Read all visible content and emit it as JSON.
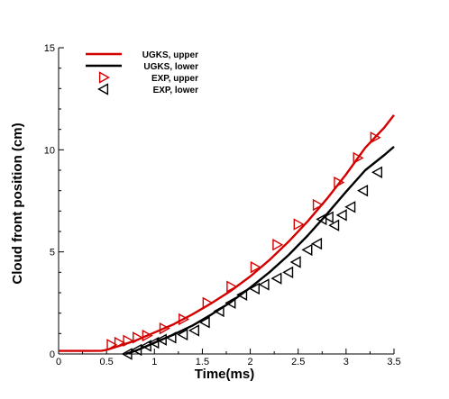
{
  "chart_data": {
    "type": "line",
    "title": "",
    "xlabel": "Time(ms)",
    "ylabel": "Cloud front position (cm)",
    "xlim": [
      0,
      3.5
    ],
    "ylim": [
      0,
      15
    ],
    "xticks": [
      0,
      0.5,
      1,
      1.5,
      2,
      2.5,
      3,
      3.5
    ],
    "xtick_labels": [
      "0",
      "0.5",
      "1",
      "1.5",
      "2",
      "2.5",
      "3",
      "3.5"
    ],
    "yticks": [
      0,
      5,
      10,
      15
    ],
    "ytick_labels": [
      "0",
      "5",
      "10",
      "15"
    ],
    "grid": false,
    "legend_position": "top-left",
    "colors": {
      "upper": "#d40000",
      "lower": "#000000"
    },
    "series": [
      {
        "name": "UGKS, upper",
        "kind": "line",
        "color": "#d40000",
        "x": [
          0,
          0.3,
          0.45,
          0.5,
          0.6,
          0.7,
          0.8,
          0.9,
          1.0,
          1.2,
          1.4,
          1.6,
          1.8,
          2.0,
          2.2,
          2.4,
          2.6,
          2.8,
          3.0,
          3.2,
          3.4,
          3.5
        ],
        "y": [
          0.15,
          0.15,
          0.16,
          0.2,
          0.35,
          0.5,
          0.65,
          0.85,
          1.05,
          1.45,
          1.95,
          2.5,
          3.1,
          3.8,
          4.6,
          5.5,
          6.5,
          7.6,
          8.8,
          10.1,
          11.1,
          11.7
        ]
      },
      {
        "name": "UGKS, lower",
        "kind": "line",
        "color": "#000000",
        "x": [
          0.7,
          0.8,
          0.9,
          1.0,
          1.2,
          1.4,
          1.6,
          1.8,
          2.0,
          2.2,
          2.4,
          2.6,
          2.8,
          3.0,
          3.2,
          3.4,
          3.5
        ],
        "y": [
          0.0,
          0.15,
          0.35,
          0.55,
          0.95,
          1.4,
          1.95,
          2.55,
          3.25,
          4.0,
          4.85,
          5.8,
          6.85,
          7.95,
          9.0,
          9.75,
          10.15
        ]
      },
      {
        "name": "EXP, upper",
        "kind": "marker",
        "marker": "triangle-right",
        "color": "#d40000",
        "x": [
          0.55,
          0.63,
          0.72,
          0.82,
          0.92,
          1.1,
          1.3,
          1.55,
          1.8,
          2.05,
          2.28,
          2.5,
          2.7,
          2.92,
          3.12,
          3.3
        ],
        "y": [
          0.45,
          0.55,
          0.65,
          0.8,
          0.9,
          1.25,
          1.7,
          2.5,
          3.3,
          4.25,
          5.35,
          6.35,
          7.3,
          8.4,
          9.6,
          10.6
        ]
      },
      {
        "name": "EXP, lower",
        "kind": "marker",
        "marker": "triangle-left",
        "color": "#000000",
        "x": [
          0.72,
          0.82,
          0.92,
          1.0,
          1.08,
          1.18,
          1.3,
          1.42,
          1.53,
          1.68,
          1.8,
          1.92,
          2.05,
          2.15,
          2.28,
          2.4,
          2.48,
          2.6,
          2.7,
          2.75,
          2.82,
          2.88,
          2.96,
          3.05,
          3.18,
          3.33
        ],
        "y": [
          0.0,
          0.2,
          0.4,
          0.55,
          0.7,
          0.8,
          0.95,
          1.15,
          1.55,
          2.1,
          2.5,
          2.9,
          3.2,
          3.4,
          3.7,
          4.0,
          4.5,
          5.1,
          5.4,
          6.6,
          6.7,
          6.3,
          6.8,
          7.2,
          8.0,
          8.9
        ]
      }
    ]
  }
}
